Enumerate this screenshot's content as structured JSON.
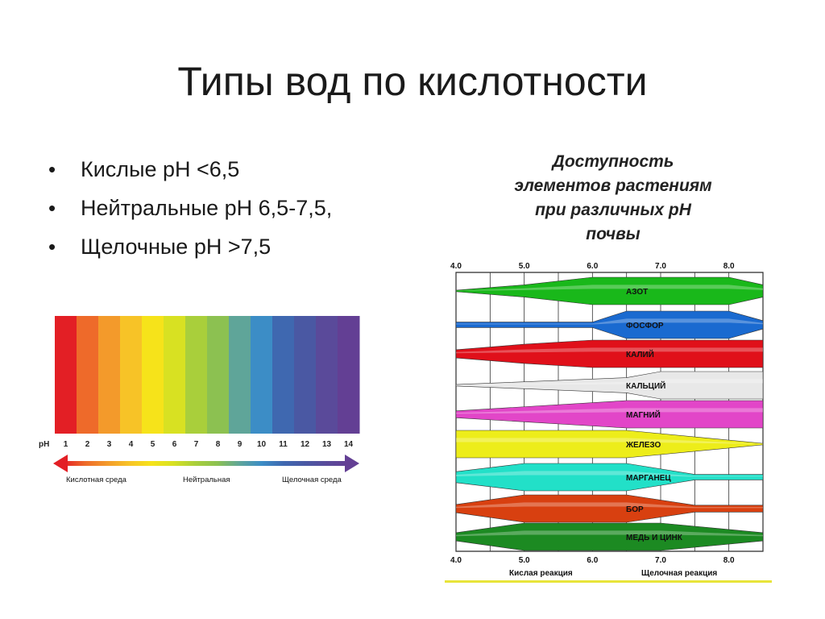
{
  "slide": {
    "title": "Типы вод по кислотности",
    "bullets": [
      "Кислые pH <6,5",
      "Нейтральные pH 6,5-7,5,",
      "Щелочные pH >7,5"
    ]
  },
  "ph_scale": {
    "label": "pH",
    "values": [
      "1",
      "2",
      "3",
      "4",
      "5",
      "6",
      "7",
      "8",
      "9",
      "10",
      "11",
      "12",
      "13",
      "14"
    ],
    "colors": [
      "#e31f25",
      "#ee6a2a",
      "#f39a2b",
      "#f7c327",
      "#f6e31a",
      "#d8e122",
      "#a9cf3b",
      "#8cc151",
      "#5fa599",
      "#3c8dc6",
      "#3f68b0",
      "#4a58a3",
      "#5a4a9a",
      "#633f94"
    ],
    "captions": {
      "acid": "Кислотная среда",
      "neutral": "Нейтральная",
      "alkaline": "Щелочная среда"
    }
  },
  "availability_chart": {
    "title_lines": [
      "Доступность",
      "элементов растениям",
      "при различных pH",
      "почвы"
    ],
    "axis_ticks": [
      "4.0",
      "5.0",
      "6.0",
      "7.0",
      "8.0"
    ],
    "bottom_captions": {
      "acid": "Кислая реакция",
      "alkaline": "Щелочная реакция"
    }
  },
  "chart_data": {
    "type": "area",
    "x_range": [
      4.0,
      8.5
    ],
    "x_ticks": [
      4.0,
      5.0,
      6.0,
      7.0,
      8.0
    ],
    "series": [
      {
        "name": "АЗОТ",
        "color": "#19b81a",
        "points": [
          [
            4.0,
            0.05
          ],
          [
            5.0,
            0.45
          ],
          [
            6.0,
            1.0
          ],
          [
            8.0,
            1.0
          ],
          [
            8.5,
            0.45
          ]
        ]
      },
      {
        "name": "ФОСФОР",
        "color": "#1a6ad0",
        "points": [
          [
            4.0,
            0.2
          ],
          [
            6.0,
            0.2
          ],
          [
            6.5,
            1.0
          ],
          [
            8.0,
            1.0
          ],
          [
            8.5,
            0.3
          ]
        ]
      },
      {
        "name": "КАЛИЙ",
        "color": "#e0101a",
        "points": [
          [
            4.0,
            0.3
          ],
          [
            5.0,
            0.7
          ],
          [
            6.0,
            1.0
          ],
          [
            8.5,
            1.0
          ]
        ]
      },
      {
        "name": "КАЛЬЦИЙ",
        "color": "#e8e8e8",
        "points": [
          [
            4.0,
            0.05
          ],
          [
            6.5,
            0.55
          ],
          [
            7.0,
            1.0
          ],
          [
            8.5,
            1.0
          ]
        ]
      },
      {
        "name": "МАГНИЙ",
        "color": "#e246c8",
        "points": [
          [
            4.0,
            0.25
          ],
          [
            6.5,
            1.0
          ],
          [
            8.5,
            1.0
          ]
        ]
      },
      {
        "name": "ЖЕЛЕЗО",
        "color": "#eded1a",
        "points": [
          [
            4.0,
            1.0
          ],
          [
            6.5,
            1.0
          ],
          [
            8.5,
            0.05
          ]
        ]
      },
      {
        "name": "МАРГАНЕЦ",
        "color": "#22e0c8",
        "points": [
          [
            4.0,
            0.4
          ],
          [
            5.0,
            1.0
          ],
          [
            6.5,
            1.0
          ],
          [
            7.5,
            0.2
          ],
          [
            8.5,
            0.2
          ]
        ]
      },
      {
        "name": "БОР",
        "color": "#d84010",
        "points": [
          [
            4.0,
            0.3
          ],
          [
            5.0,
            1.0
          ],
          [
            6.5,
            1.0
          ],
          [
            7.5,
            0.25
          ],
          [
            8.5,
            0.25
          ]
        ]
      },
      {
        "name": "МЕДЬ И ЦИНК",
        "color": "#1c8a22",
        "points": [
          [
            4.0,
            0.3
          ],
          [
            5.0,
            1.0
          ],
          [
            7.0,
            1.0
          ],
          [
            8.5,
            0.3
          ]
        ]
      }
    ]
  }
}
